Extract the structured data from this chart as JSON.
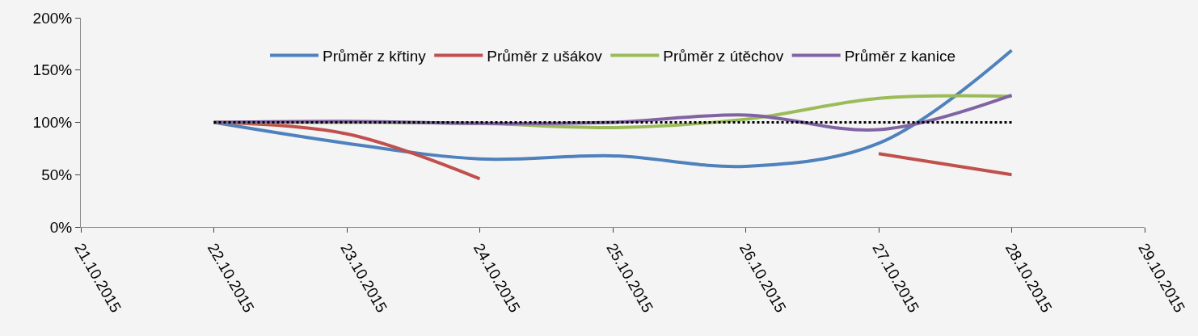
{
  "chart_data": {
    "type": "line",
    "x": [
      "2015-10-22",
      "2015-10-23",
      "2015-10-24",
      "2015-10-25",
      "2015-10-26",
      "2015-10-27",
      "2015-10-28"
    ],
    "series": [
      {
        "name": "Průměr z křtiny",
        "color": "#4f81bd",
        "values": [
          100,
          80,
          65,
          68,
          58,
          80,
          169
        ]
      },
      {
        "name": "Průměr z ušákov",
        "color": "#c0504d",
        "values": [
          100,
          89,
          46,
          null,
          null,
          70,
          50
        ]
      },
      {
        "name": "Průměr z útěchov",
        "color": "#9bbb59",
        "values": [
          100,
          100,
          99,
          95,
          103,
          123,
          125
        ]
      },
      {
        "name": "Průměr z kanice",
        "color": "#8064a2",
        "values": [
          100,
          101,
          99,
          100,
          107,
          93,
          126
        ]
      },
      {
        "color": "#000000",
        "line_style": "dotted",
        "values": [
          100,
          100,
          100,
          100,
          100,
          100,
          100
        ]
      }
    ],
    "xlim": [
      "2015-10-21",
      "2015-10-29"
    ],
    "xticks": [
      {
        "value": "2015-10-21",
        "label": "21.10.2015"
      },
      {
        "value": "2015-10-22",
        "label": "22.10.2015"
      },
      {
        "value": "2015-10-23",
        "label": "23.10.2015"
      },
      {
        "value": "2015-10-24",
        "label": "24.10.2015"
      },
      {
        "value": "2015-10-25",
        "label": "25.10.2015"
      },
      {
        "value": "2015-10-26",
        "label": "26.10.2015"
      },
      {
        "value": "2015-10-27",
        "label": "27.10.2015"
      },
      {
        "value": "2015-10-28",
        "label": "28.10.2015"
      },
      {
        "value": "2015-10-29",
        "label": "29.10.2015"
      }
    ],
    "ylim": [
      0,
      200
    ],
    "yticks": [
      {
        "value": 0,
        "label": "0%"
      },
      {
        "value": 50,
        "label": "50%"
      },
      {
        "value": 100,
        "label": "100%"
      },
      {
        "value": 150,
        "label": "150%"
      },
      {
        "value": 200,
        "label": "200%"
      }
    ],
    "grid": false,
    "legend": "top",
    "marker": "none",
    "line_style": "solid"
  }
}
